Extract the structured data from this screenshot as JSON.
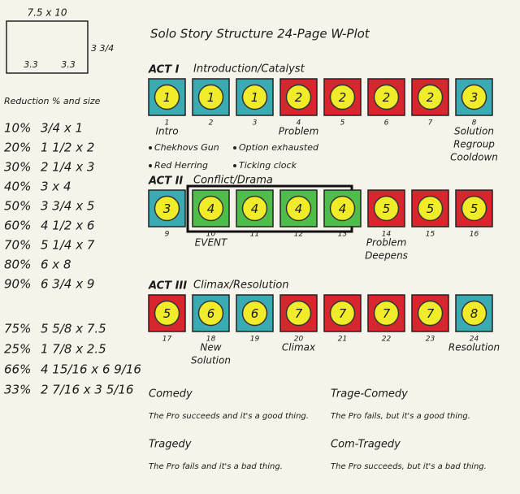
{
  "sheet": {
    "size": "7.5 x 10",
    "right_measure": "3 3/4",
    "bottom_measures": [
      "3.3",
      "3.3"
    ]
  },
  "reduction": {
    "title": "Reduction % and size",
    "rows": [
      [
        "10%",
        "3/4 x 1"
      ],
      [
        "20%",
        "1 1/2 x 2"
      ],
      [
        "30%",
        "2 1/4 x 3"
      ],
      [
        "40%",
        "3 x 4"
      ],
      [
        "50%",
        "3 3/4 x 5"
      ],
      [
        "60%",
        "4 1/2 x 6"
      ],
      [
        "70%",
        "5 1/4 x 7"
      ],
      [
        "80%",
        "6 x 8"
      ],
      [
        "90%",
        "6 3/4 x 9"
      ]
    ],
    "extra_rows": [
      [
        "75%",
        "5 5/8 x 7.5"
      ],
      [
        "25%",
        "1 7/8 x 2.5"
      ],
      [
        "66%",
        "4 15/16 x 6 9/16"
      ],
      [
        "33%",
        "2 7/16 x 3 5/16"
      ]
    ]
  },
  "title": "Solo Story Structure   24-Page W-Plot",
  "acts": [
    {
      "label": "ACT I",
      "title": "Introduction/Catalyst",
      "boxes": [
        {
          "beat": 1,
          "page": 1,
          "color": "#3aaab3",
          "note": [
            "Intro"
          ]
        },
        {
          "beat": 1,
          "page": 2,
          "color": "#3aaab3"
        },
        {
          "beat": 1,
          "page": 3,
          "color": "#3aaab3"
        },
        {
          "beat": 2,
          "page": 4,
          "color": "#d8262e",
          "note": [
            "Problem"
          ]
        },
        {
          "beat": 2,
          "page": 5,
          "color": "#d8262e"
        },
        {
          "beat": 2,
          "page": 6,
          "color": "#d8262e"
        },
        {
          "beat": 2,
          "page": 7,
          "color": "#d8262e"
        },
        {
          "beat": 3,
          "page": 8,
          "color": "#3aaab3",
          "note": [
            "Solution",
            "Regroup",
            "Cooldown"
          ]
        }
      ]
    },
    {
      "label": "ACT II",
      "title": "Conflict/Drama",
      "boxes": [
        {
          "beat": 3,
          "page": 9,
          "color": "#3aaab3"
        },
        {
          "beat": 4,
          "page": 10,
          "color": "#4fbd4a",
          "note": [
            "EVENT"
          ]
        },
        {
          "beat": 4,
          "page": 11,
          "color": "#4fbd4a"
        },
        {
          "beat": 4,
          "page": 12,
          "color": "#4fbd4a"
        },
        {
          "beat": 4,
          "page": 13,
          "color": "#4fbd4a"
        },
        {
          "beat": 5,
          "page": 14,
          "color": "#d8262e",
          "note": [
            "Problem",
            "Deepens"
          ]
        },
        {
          "beat": 5,
          "page": 15,
          "color": "#d8262e"
        },
        {
          "beat": 5,
          "page": 16,
          "color": "#d8262e"
        }
      ]
    },
    {
      "label": "ACT III",
      "title": "Climax/Resolution",
      "boxes": [
        {
          "beat": 5,
          "page": 17,
          "color": "#d8262e"
        },
        {
          "beat": 6,
          "page": 18,
          "color": "#3aaab3",
          "note": [
            "New",
            "Solution"
          ]
        },
        {
          "beat": 6,
          "page": 19,
          "color": "#3aaab3"
        },
        {
          "beat": 7,
          "page": 20,
          "color": "#d8262e",
          "note": [
            "Climax"
          ]
        },
        {
          "beat": 7,
          "page": 21,
          "color": "#d8262e"
        },
        {
          "beat": 7,
          "page": 22,
          "color": "#d8262e"
        },
        {
          "beat": 7,
          "page": 23,
          "color": "#d8262e"
        },
        {
          "beat": 8,
          "page": 24,
          "color": "#3aaab3",
          "note": [
            "Resolution"
          ]
        }
      ]
    }
  ],
  "devices": [
    "Chekhovs Gun",
    "Option exhausted",
    "Red Herring",
    "Ticking clock"
  ],
  "outcomes": [
    {
      "name": "Comedy",
      "text": "The Pro succeeds and it's a good thing."
    },
    {
      "name": "Trage-Comedy",
      "text": "The Pro fails, but it's a good thing."
    },
    {
      "name": "Tragedy",
      "text": "The Pro fails and it's a bad thing."
    },
    {
      "name": "Com-Tragedy",
      "text": "The Pro succeeds, but it's a bad thing."
    }
  ]
}
